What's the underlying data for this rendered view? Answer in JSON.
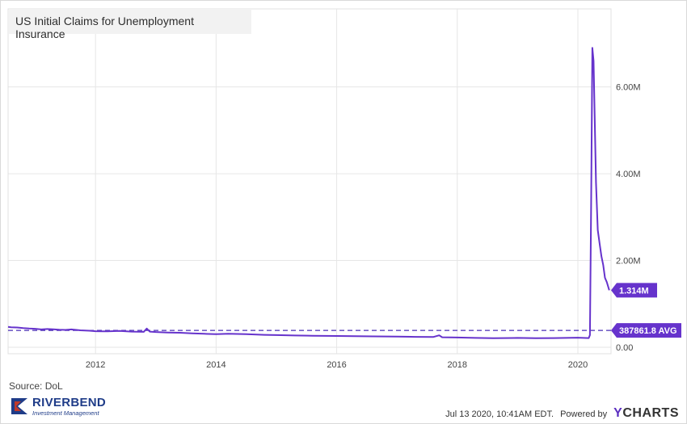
{
  "title": "US Initial Claims for Unemployment Insurance",
  "source": "Source: DoL",
  "logo": {
    "name": "RIVERBEND",
    "tagline": "Investment Management"
  },
  "footer": {
    "timestamp": "Jul 13 2020, 10:41AM EDT.",
    "powered_by": "Powered by",
    "brand": "YCHARTS"
  },
  "colors": {
    "series": "#6633cc",
    "grid": "#e6e6e6",
    "avg_line": "#4a2fb5",
    "title_bg": "#f2f2f2"
  },
  "chart_data": {
    "type": "line",
    "title": "US Initial Claims for Unemployment Insurance",
    "xlabel": "",
    "ylabel": "",
    "x_ticks": [
      2012,
      2014,
      2016,
      2018,
      2020
    ],
    "y_ticks": [
      0,
      2000000,
      4000000,
      6000000
    ],
    "y_tick_labels": [
      "0.00",
      "2.00M",
      "4.00M",
      "6.00M"
    ],
    "xlim": [
      2010.55,
      2020.55
    ],
    "ylim": [
      -150000,
      7800000
    ],
    "grid": true,
    "series": [
      {
        "name": "",
        "x": [
          2010.55,
          2010.6,
          2010.7,
          2010.8,
          2010.9,
          2011.0,
          2011.1,
          2011.2,
          2011.3,
          2011.4,
          2011.5,
          2011.6,
          2011.75,
          2011.9,
          2012.0,
          2012.2,
          2012.4,
          2012.6,
          2012.8,
          2012.85,
          2012.9,
          2013.0,
          2013.2,
          2013.4,
          2013.6,
          2013.8,
          2014.0,
          2014.2,
          2014.5,
          2014.8,
          2015.0,
          2015.3,
          2015.6,
          2016.0,
          2016.3,
          2016.6,
          2017.0,
          2017.3,
          2017.6,
          2017.7,
          2017.75,
          2018.0,
          2018.3,
          2018.6,
          2019.0,
          2019.3,
          2019.6,
          2020.0,
          2020.18,
          2020.2,
          2020.22,
          2020.24,
          2020.26,
          2020.28,
          2020.3,
          2020.33,
          2020.36,
          2020.39,
          2020.42,
          2020.45,
          2020.48,
          2020.52
        ],
        "y": [
          470000,
          460000,
          455000,
          440000,
          430000,
          425000,
          410000,
          420000,
          415000,
          405000,
          400000,
          410000,
          390000,
          380000,
          370000,
          365000,
          375000,
          360000,
          355000,
          430000,
          360000,
          350000,
          340000,
          335000,
          320000,
          310000,
          300000,
          310000,
          300000,
          285000,
          280000,
          270000,
          265000,
          260000,
          255000,
          250000,
          245000,
          240000,
          235000,
          275000,
          230000,
          225000,
          215000,
          210000,
          215000,
          210000,
          212000,
          220000,
          211000,
          280000,
          3300000,
          6900000,
          6600000,
          5200000,
          3800000,
          2700000,
          2400000,
          2100000,
          1900000,
          1600000,
          1500000,
          1314000
        ]
      }
    ],
    "reference_line": {
      "value": 387861.8,
      "label": "387861.8 AVG",
      "style": "dashed"
    },
    "last_value": {
      "value": 1314000,
      "label": "1.314M"
    }
  }
}
